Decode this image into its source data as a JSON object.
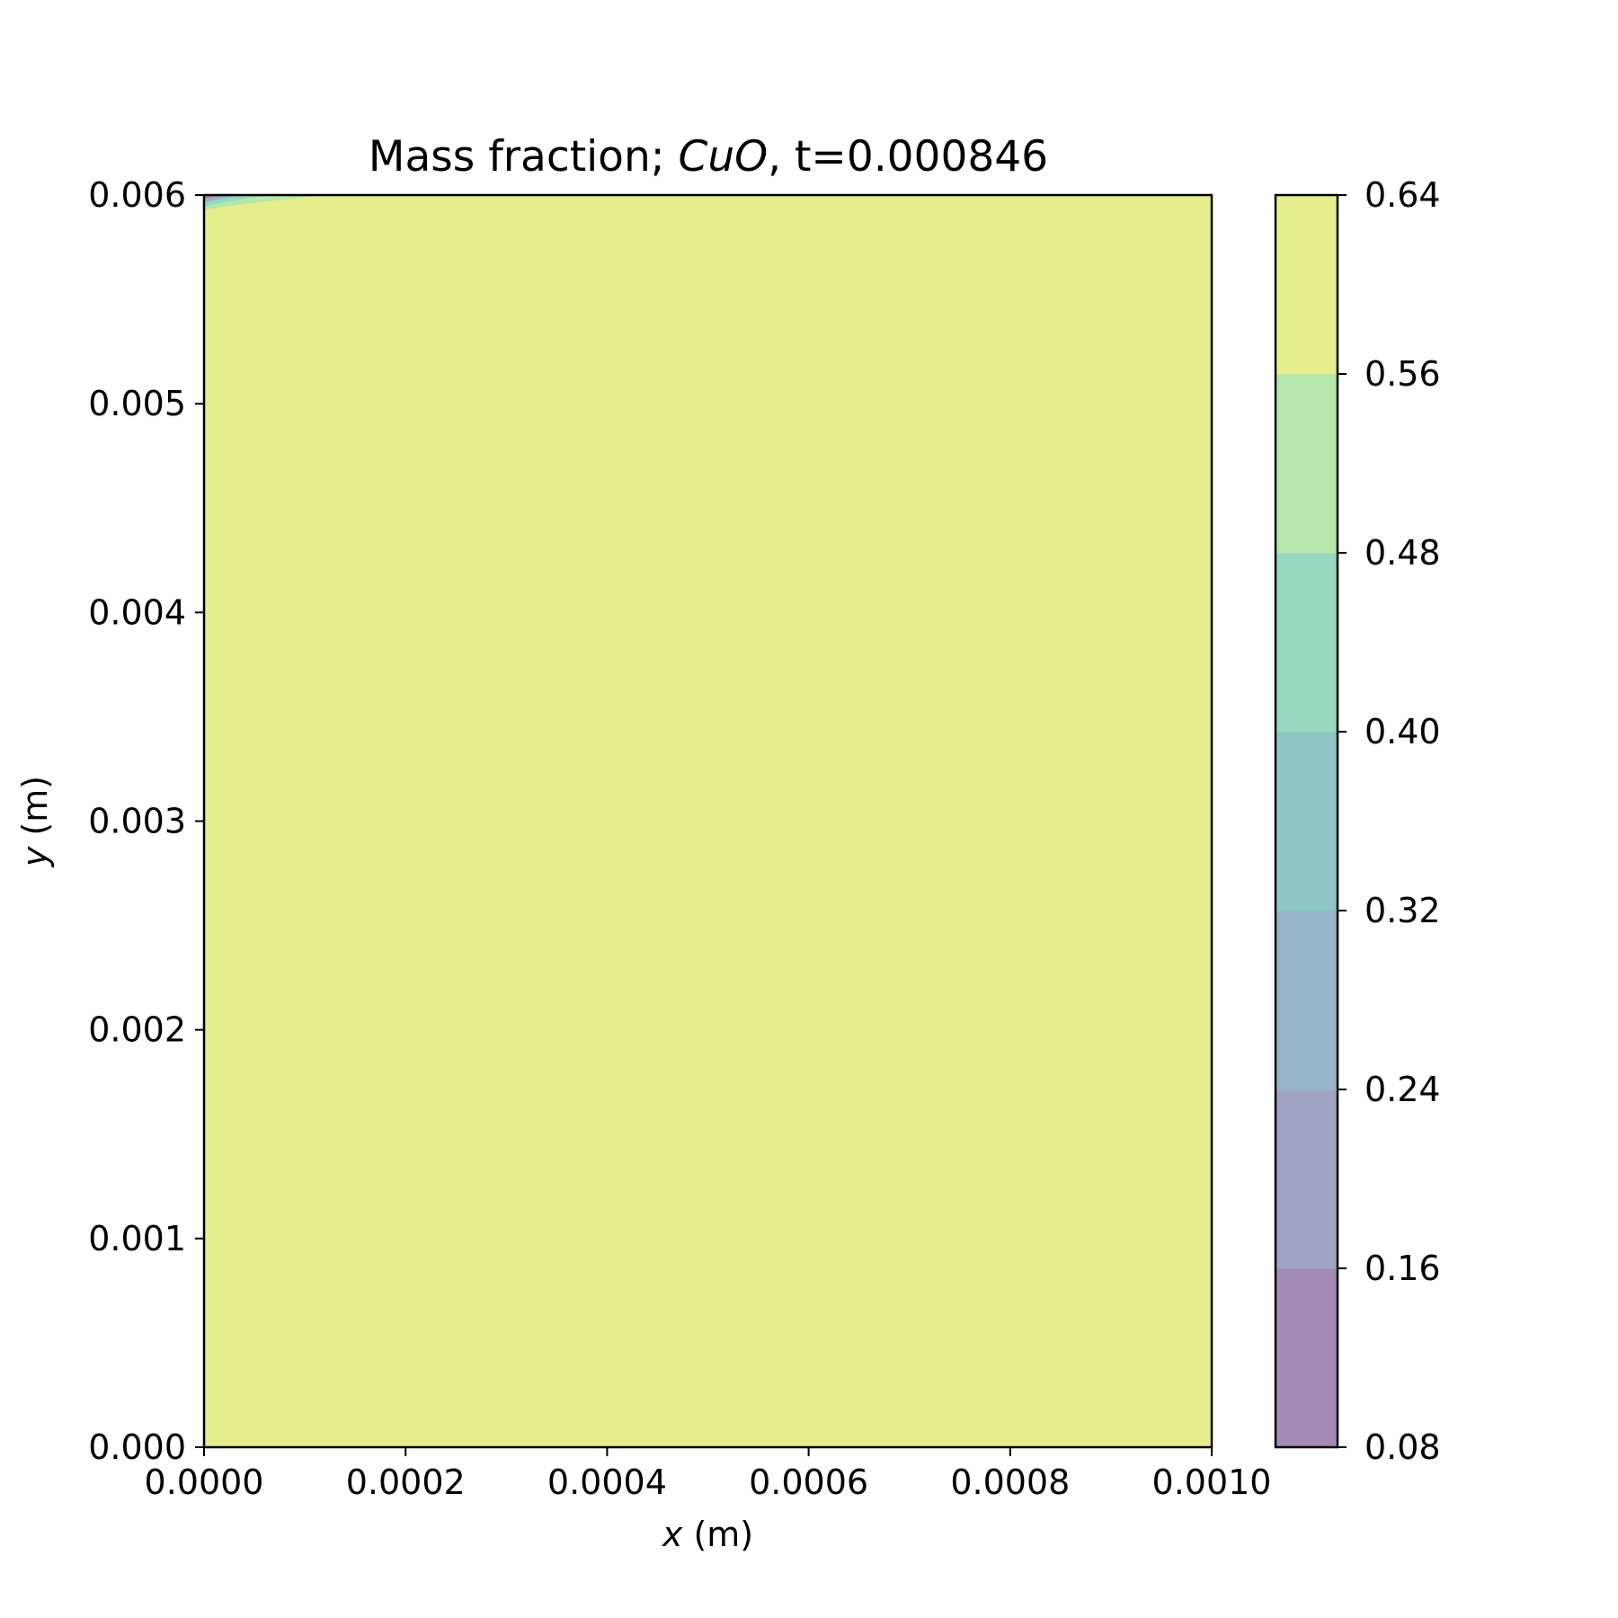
{
  "chart_data": {
    "type": "contourf",
    "title": {
      "prefix": "Mass fraction; ",
      "species": "CuO",
      "suffix": ", t=0.000846"
    },
    "xlabel": {
      "var": "x",
      "unit": " (m)"
    },
    "ylabel": {
      "var": "y",
      "unit": " (m)"
    },
    "xlim": [
      0.0,
      0.001
    ],
    "ylim": [
      0.0,
      0.006
    ],
    "xticks": [
      {
        "value": 0.0,
        "label": "0.0000"
      },
      {
        "value": 0.0002,
        "label": "0.0002"
      },
      {
        "value": 0.0004,
        "label": "0.0004"
      },
      {
        "value": 0.0006,
        "label": "0.0006"
      },
      {
        "value": 0.0008,
        "label": "0.0008"
      },
      {
        "value": 0.001,
        "label": "0.0010"
      }
    ],
    "yticks": [
      {
        "value": 0.0,
        "label": "0.000"
      },
      {
        "value": 0.001,
        "label": "0.001"
      },
      {
        "value": 0.002,
        "label": "0.002"
      },
      {
        "value": 0.003,
        "label": "0.003"
      },
      {
        "value": 0.004,
        "label": "0.004"
      },
      {
        "value": 0.005,
        "label": "0.005"
      },
      {
        "value": 0.006,
        "label": "0.006"
      }
    ],
    "colorbar": {
      "levels": [
        0.08,
        0.16,
        0.24,
        0.32,
        0.4,
        0.48,
        0.56,
        0.64
      ],
      "tick_labels": [
        "0.08",
        "0.16",
        "0.24",
        "0.32",
        "0.40",
        "0.48",
        "0.56",
        "0.64"
      ],
      "colors": [
        "#a38bb5",
        "#a1a3c2",
        "#97b5c6",
        "#8fc7c5",
        "#96d9bf",
        "#b5e6ab",
        "#e6ed8c"
      ]
    },
    "field": {
      "background_level_index": 6,
      "background_color": "#e6ed8c",
      "corner_feature": {
        "location": "top-left",
        "x_extent": [
          0.0,
          0.00012
        ],
        "y_extent": [
          0.00593,
          0.006
        ],
        "note": "thin region of lower mass fraction near top-left corner"
      }
    }
  }
}
